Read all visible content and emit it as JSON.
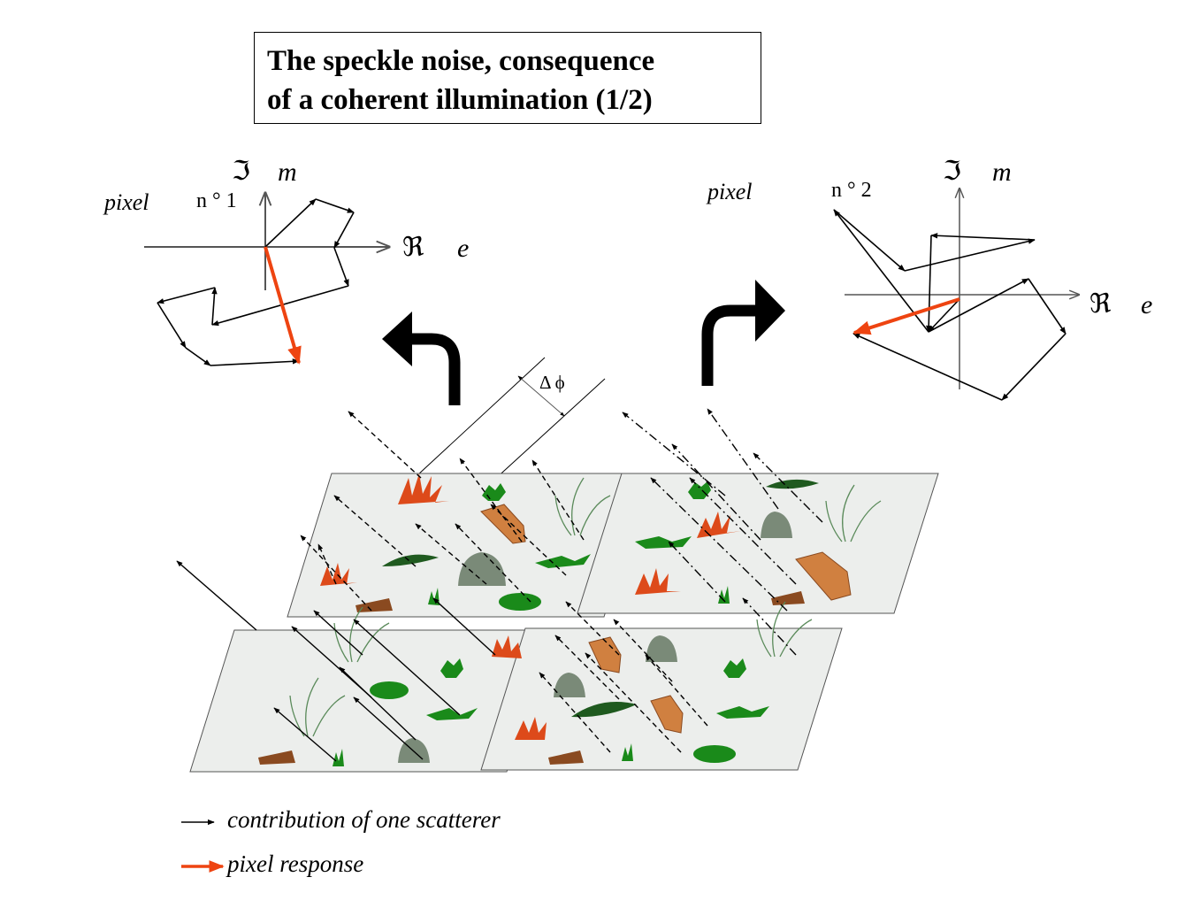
{
  "title": {
    "line1": "The speckle noise, consequence",
    "line2": "of a coherent illumination (1/2)"
  },
  "pixel1": {
    "pixel_word": "pixel",
    "number": "n ° 1",
    "imag_symbol": "ℑ",
    "imag_letter": "m",
    "real_symbol": "ℜ",
    "real_letter": "e"
  },
  "pixel2": {
    "pixel_word": "pixel",
    "number": "n ° 2",
    "imag_symbol": "ℑ",
    "imag_letter": "m",
    "real_symbol": "ℜ",
    "real_letter": "e"
  },
  "phase_label": "Δ  ϕ",
  "legend": {
    "scatterer": "contribution of  one scatterer",
    "pixel": "pixel   response"
  },
  "colors": {
    "pixel_response": "#ee4411",
    "ground": "#eceeec",
    "vegetation_orange": "#dd4a1a",
    "vegetation_green": "#1a8a1a",
    "rock_gray": "#7a8a78",
    "stump_brown": "#8a4a20",
    "rock_tan": "#d08040"
  }
}
